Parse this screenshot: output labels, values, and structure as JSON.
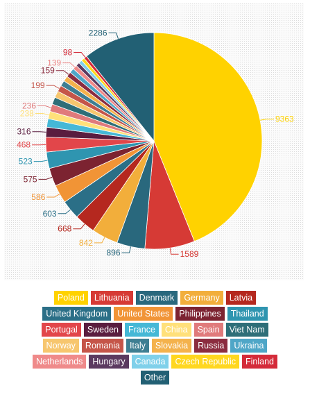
{
  "chart_data": {
    "type": "pie",
    "title": "",
    "slices": [
      {
        "name": "Poland",
        "value": 9363,
        "color": "#ffd200",
        "label": "9363"
      },
      {
        "name": "Lithuania",
        "value": 1589,
        "color": "#d63a35",
        "label": "1589"
      },
      {
        "name": "Denmark",
        "value": 896,
        "color": "#29687d",
        "label": "896"
      },
      {
        "name": "Germany",
        "value": 842,
        "color": "#f2ae3b",
        "label": "842"
      },
      {
        "name": "Latvia",
        "value": 668,
        "color": "#b5281f",
        "label": "668"
      },
      {
        "name": "United Kingdom",
        "value": 603,
        "color": "#2b6f87",
        "label": "603"
      },
      {
        "name": "United States",
        "value": 586,
        "color": "#f19436",
        "label": "586"
      },
      {
        "name": "Philippines",
        "value": 575,
        "color": "#7c2331",
        "label": "575"
      },
      {
        "name": "Thailand",
        "value": 523,
        "color": "#2f95b0",
        "label": "523"
      },
      {
        "name": "Portugal",
        "value": 468,
        "color": "#e2464a",
        "label": "468"
      },
      {
        "name": "Sweden",
        "value": 316,
        "color": "#5a1d3f",
        "label": "316"
      },
      {
        "name": "France",
        "value": 270,
        "color": "#45b8d6",
        "label": ""
      },
      {
        "name": "China",
        "value": 238,
        "color": "#ffe07a",
        "label": "238"
      },
      {
        "name": "Spain",
        "value": 236,
        "color": "#e07a7b",
        "label": "236"
      },
      {
        "name": "Viet Nam",
        "value": 230,
        "color": "#2e6e78",
        "label": ""
      },
      {
        "name": "Norway",
        "value": 210,
        "color": "#f7c66e",
        "label": ""
      },
      {
        "name": "Romania",
        "value": 199,
        "color": "#c55549",
        "label": "199"
      },
      {
        "name": "Italy",
        "value": 180,
        "color": "#3e7e92",
        "label": ""
      },
      {
        "name": "Slovakia",
        "value": 170,
        "color": "#f4b24c",
        "label": ""
      },
      {
        "name": "Russia",
        "value": 159,
        "color": "#8b2c3f",
        "label": "159"
      },
      {
        "name": "Ukraina",
        "value": 150,
        "color": "#4fa6c7",
        "label": ""
      },
      {
        "name": "Netherlands",
        "value": 139,
        "color": "#ef8a8a",
        "label": "139"
      },
      {
        "name": "Hungary",
        "value": 120,
        "color": "#5b3a60",
        "label": ""
      },
      {
        "name": "Canada",
        "value": 110,
        "color": "#7fd0ea",
        "label": ""
      },
      {
        "name": "Czech Republic",
        "value": 105,
        "color": "#ffd71f",
        "label": ""
      },
      {
        "name": "Finland",
        "value": 98,
        "color": "#d42b3a",
        "label": "98"
      },
      {
        "name": "Other",
        "value": 2286,
        "color": "#226074",
        "label": "2286"
      }
    ],
    "legend": {
      "placement": "bottom",
      "rows": [
        [
          "Poland",
          "Lithuania",
          "Denmark",
          "Germany",
          "Latvia"
        ],
        [
          "United Kingdom",
          "United States",
          "Philippines",
          "Thailand"
        ],
        [
          "Portugal",
          "Sweden",
          "France",
          "China",
          "Spain",
          "Viet Nam"
        ],
        [
          "Norway",
          "Romania",
          "Italy",
          "Slovakia",
          "Russia",
          "Ukraina"
        ],
        [
          "Netherlands",
          "Hungary",
          "Canada",
          "Czech Republic",
          "Finland"
        ],
        [
          "Other"
        ]
      ]
    }
  }
}
